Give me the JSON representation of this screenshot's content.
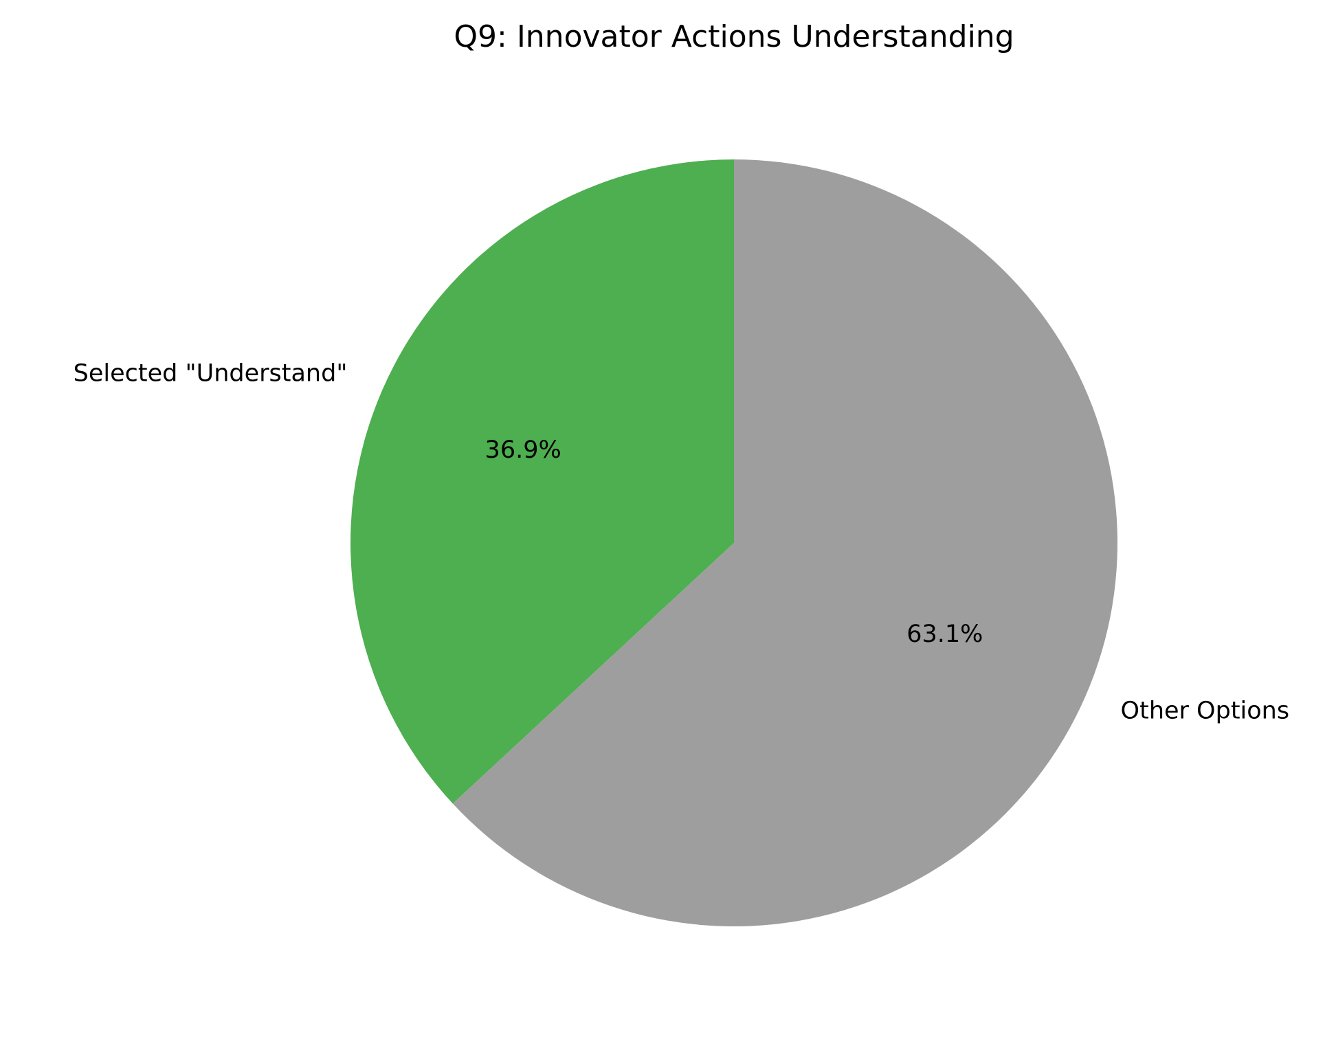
{
  "chart_data": {
    "type": "pie",
    "title": "Q9: Innovator Actions Understanding",
    "slices": [
      {
        "label": "Selected \"Understand\"",
        "value": 36.9,
        "pct_label": "36.9%",
        "color": "#4daf4f"
      },
      {
        "label": "Other Options",
        "value": 63.1,
        "pct_label": "63.1%",
        "color": "#9e9e9e"
      }
    ],
    "start_angle_deg": 90,
    "direction": "counterclockwise",
    "legend": "none"
  }
}
